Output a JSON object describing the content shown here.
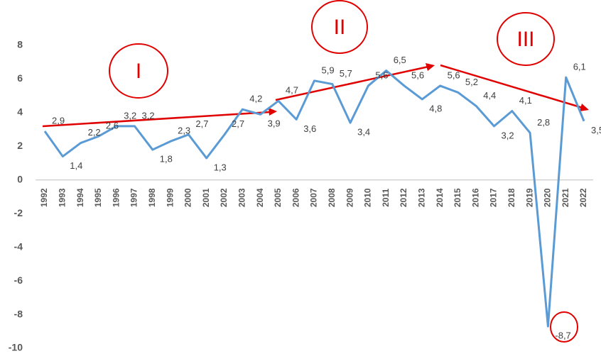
{
  "chart_data": {
    "type": "line",
    "categories": [
      "1992",
      "1993",
      "1994",
      "1995",
      "1996",
      "1997",
      "1998",
      "1999",
      "2000",
      "2001",
      "2002",
      "2003",
      "2004",
      "2005",
      "2006",
      "2007",
      "2008",
      "2009",
      "2010",
      "2011",
      "2012",
      "2013",
      "2014",
      "2015",
      "2016",
      "2017",
      "2018",
      "2019",
      "2020",
      "2021",
      "2022"
    ],
    "values": [
      2.9,
      1.4,
      2.2,
      2.6,
      3.2,
      3.2,
      1.8,
      2.3,
      2.7,
      1.3,
      2.7,
      4.2,
      3.9,
      4.7,
      3.6,
      5.9,
      5.7,
      3.4,
      5.6,
      6.5,
      5.6,
      4.8,
      5.6,
      5.2,
      4.4,
      3.2,
      4.1,
      2.8,
      -8.7,
      6.1,
      3.5
    ],
    "value_labels": [
      "2,9",
      "1,4",
      "2,2",
      "2,6",
      "3,2",
      "3,2",
      "1,8",
      "2,3",
      "2,7",
      "1,3",
      "2,7",
      "4,2",
      "3,9",
      "4,7",
      "3,6",
      "5,9",
      "5,7",
      "3,4",
      "5,6",
      "6,5",
      "5,6",
      "4,8",
      "5,6",
      "5,2",
      "4,4",
      "3,2",
      "4,1",
      "2,8",
      "-8,7",
      "6,1",
      "3,5"
    ],
    "color": "#5b9bd5",
    "ylim": [
      -10,
      8
    ],
    "yticks": [
      -10,
      -8,
      -6,
      -4,
      -2,
      0,
      2,
      4,
      6,
      8
    ],
    "annotations": [
      "I",
      "II",
      "III"
    ]
  }
}
